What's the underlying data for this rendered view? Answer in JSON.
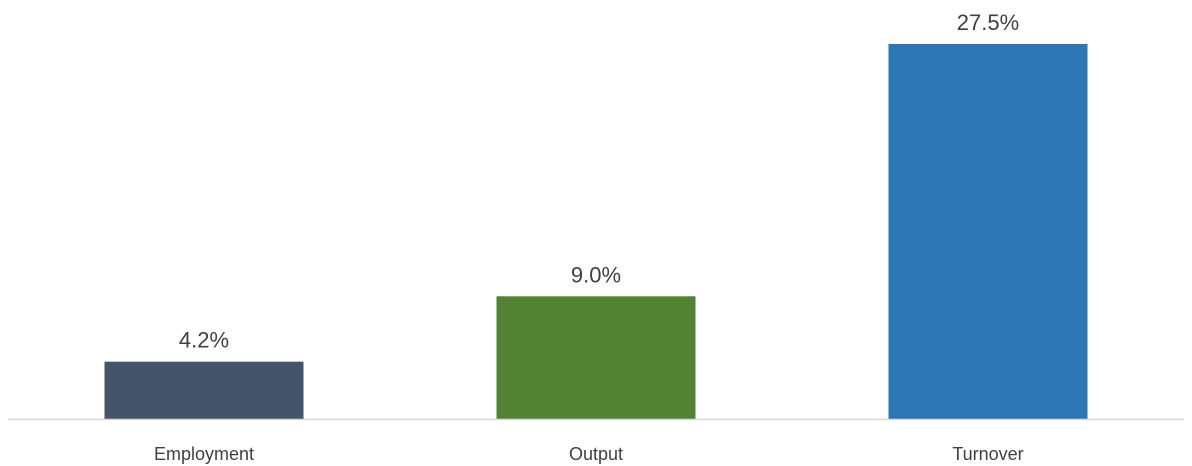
{
  "chart_data": {
    "type": "bar",
    "categories": [
      "Employment",
      "Output",
      "Turnover"
    ],
    "values": [
      4.2,
      9.0,
      27.5
    ],
    "value_labels": [
      "4.2%",
      "9.0%",
      "27.5%"
    ],
    "colors": [
      "#44546A",
      "#548235",
      "#2E75B6"
    ],
    "axis_color": "#D9D9D9",
    "title": "",
    "xlabel": "",
    "ylabel": "",
    "ylim": [
      0,
      27.5
    ],
    "grid": false,
    "legend": "none"
  }
}
